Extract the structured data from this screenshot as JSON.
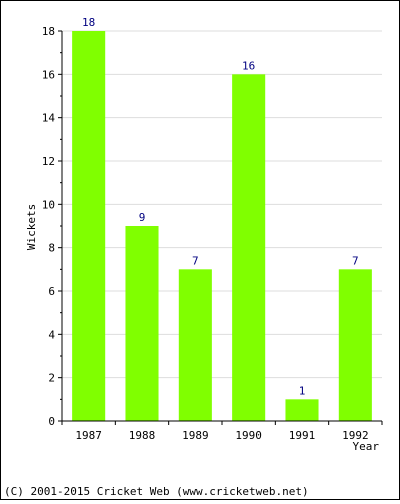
{
  "chart_data": {
    "type": "bar",
    "categories": [
      "1987",
      "1988",
      "1989",
      "1990",
      "1991",
      "1992"
    ],
    "values": [
      18,
      9,
      7,
      16,
      1,
      7
    ],
    "data_labels": [
      "18",
      "9",
      "7",
      "16",
      "1",
      "7"
    ],
    "xlabel": "Year",
    "ylabel": "Wickets",
    "ylim": [
      0,
      18
    ],
    "y_ticks": [
      0,
      2,
      4,
      6,
      8,
      10,
      12,
      14,
      16,
      18
    ],
    "y_minor_step": 1,
    "grid": true,
    "bar_color": "#80ff00",
    "label_color": "#000080",
    "grid_color": "#dddddd"
  },
  "footer": {
    "text": "(C) 2001-2015 Cricket Web (www.cricketweb.net)"
  }
}
